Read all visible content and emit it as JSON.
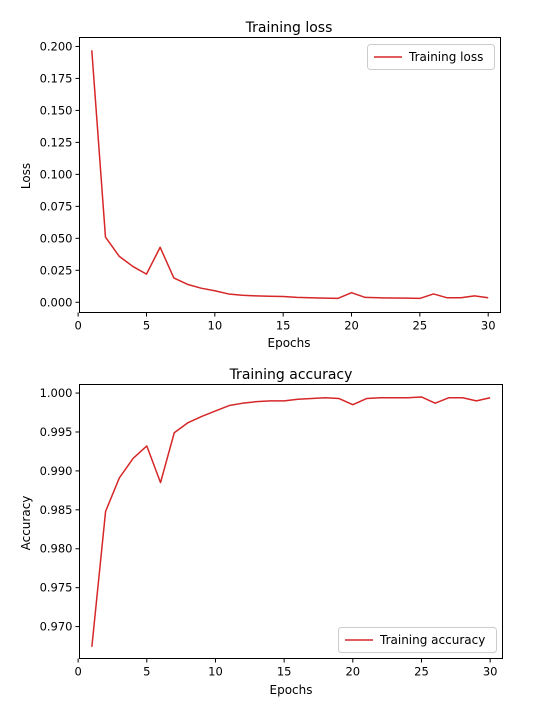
{
  "chart_data": [
    {
      "type": "line",
      "title": "Training loss",
      "xlabel": "Epochs",
      "ylabel": "Loss",
      "xlim": [
        0.1,
        30.9
      ],
      "ylim": [
        -0.008,
        0.207
      ],
      "xticks": [
        0,
        5,
        10,
        15,
        20,
        25,
        30
      ],
      "yticks": [
        0.0,
        0.025,
        0.05,
        0.075,
        0.1,
        0.125,
        0.15,
        0.175,
        0.2
      ],
      "ytick_labels": [
        "0.000",
        "0.025",
        "0.050",
        "0.075",
        "0.100",
        "0.125",
        "0.150",
        "0.175",
        "0.200"
      ],
      "xtick_labels": [
        "0",
        "5",
        "10",
        "15",
        "20",
        "25",
        "30"
      ],
      "legend_position": "top-right",
      "grid": false,
      "color": "#d62728",
      "series": [
        {
          "name": "Training loss",
          "x": [
            1,
            2,
            3,
            4,
            5,
            6,
            7,
            8,
            9,
            10,
            11,
            12,
            13,
            14,
            15,
            16,
            17,
            18,
            19,
            20,
            21,
            22,
            23,
            24,
            25,
            26,
            27,
            28,
            29,
            30
          ],
          "y": [
            0.197,
            0.051,
            0.036,
            0.028,
            0.022,
            0.043,
            0.019,
            0.014,
            0.011,
            0.009,
            0.0065,
            0.0055,
            0.005,
            0.0047,
            0.0045,
            0.0038,
            0.0035,
            0.0032,
            0.003,
            0.0075,
            0.0038,
            0.0035,
            0.0033,
            0.0032,
            0.003,
            0.0065,
            0.0035,
            0.0035,
            0.005,
            0.0035
          ]
        }
      ]
    },
    {
      "type": "line",
      "title": "Training accuracy",
      "xlabel": "Epochs",
      "ylabel": "Accuracy",
      "xlim": [
        0.1,
        30.9
      ],
      "ylim": [
        0.9659,
        1.0011
      ],
      "xticks": [
        0,
        5,
        10,
        15,
        20,
        25,
        30
      ],
      "yticks": [
        0.97,
        0.975,
        0.98,
        0.985,
        0.99,
        0.995,
        1.0
      ],
      "ytick_labels": [
        "0.970",
        "0.975",
        "0.980",
        "0.985",
        "0.990",
        "0.995",
        "1.000"
      ],
      "xtick_labels": [
        "0",
        "5",
        "10",
        "15",
        "20",
        "25",
        "30"
      ],
      "legend_position": "bottom-right",
      "grid": false,
      "color": "#d62728",
      "series": [
        {
          "name": "Training accuracy",
          "x": [
            1,
            2,
            3,
            4,
            5,
            6,
            7,
            8,
            9,
            10,
            11,
            12,
            13,
            14,
            15,
            16,
            17,
            18,
            19,
            20,
            21,
            22,
            23,
            24,
            25,
            26,
            27,
            28,
            29,
            30
          ],
          "y": [
            0.9674,
            0.9848,
            0.9891,
            0.9916,
            0.9932,
            0.9885,
            0.9949,
            0.9962,
            0.997,
            0.9977,
            0.9984,
            0.9987,
            0.9989,
            0.999,
            0.999,
            0.9992,
            0.9993,
            0.9994,
            0.9993,
            0.9985,
            0.9993,
            0.9994,
            0.9994,
            0.9994,
            0.9995,
            0.9987,
            0.9994,
            0.9994,
            0.999,
            0.9994
          ]
        }
      ]
    }
  ]
}
